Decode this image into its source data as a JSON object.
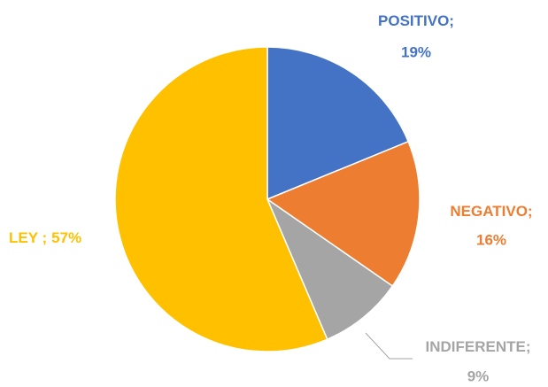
{
  "chart_data": {
    "type": "pie",
    "categories": [
      "POSITIVO;",
      "NEGATIVO;",
      "INDIFERENTE;",
      "LEY ;"
    ],
    "values": [
      19,
      16,
      9,
      57
    ],
    "value_labels": [
      "19%",
      "16%",
      "9%",
      "57%"
    ],
    "colors": [
      "#4472c4",
      "#ed7d31",
      "#a5a5a5",
      "#ffc000"
    ]
  }
}
